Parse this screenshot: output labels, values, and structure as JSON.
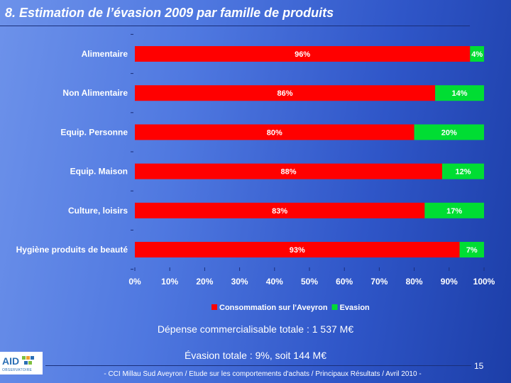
{
  "title": "8. Estimation de l’évasion 2009 par famille de produits",
  "colors": {
    "consommation": "#ff0000",
    "evasion": "#00dd33"
  },
  "chart_data": {
    "type": "bar",
    "orientation": "horizontal",
    "stacked": true,
    "categories": [
      "Alimentaire",
      "Non Alimentaire",
      "Equip. Personne",
      "Equip. Maison",
      "Culture, loisirs",
      "Hygiène produits de beauté"
    ],
    "series": [
      {
        "name": "Consommation sur l'Aveyron",
        "values": [
          96,
          86,
          80,
          88,
          83,
          93
        ],
        "labels": [
          "96%",
          "86%",
          "80%",
          "88%",
          "83%",
          "93%"
        ]
      },
      {
        "name": "Evasion",
        "values": [
          4,
          14,
          20,
          12,
          17,
          7
        ],
        "labels": [
          "4%",
          "14%",
          "20%",
          "12%",
          "17%",
          "7%"
        ]
      }
    ],
    "xticks": [
      "0%",
      "10%",
      "20%",
      "30%",
      "40%",
      "50%",
      "60%",
      "70%",
      "80%",
      "90%",
      "100%"
    ],
    "xlim": [
      0,
      100
    ],
    "grid": false,
    "legend": "bottom"
  },
  "notes": {
    "depense": "Dépense commercialisable totale : 1 537 M€",
    "evasion": "Évasion totale : 9%, soit 144 M€"
  },
  "logo": {
    "text": "AID",
    "subtext": "OBSERVATOIRE"
  },
  "footer": "- CCI Millau Sud Aveyron /  Etude sur les comportements d'achats / Principaux Résultats / Avril 2010 -",
  "page_number": "15"
}
